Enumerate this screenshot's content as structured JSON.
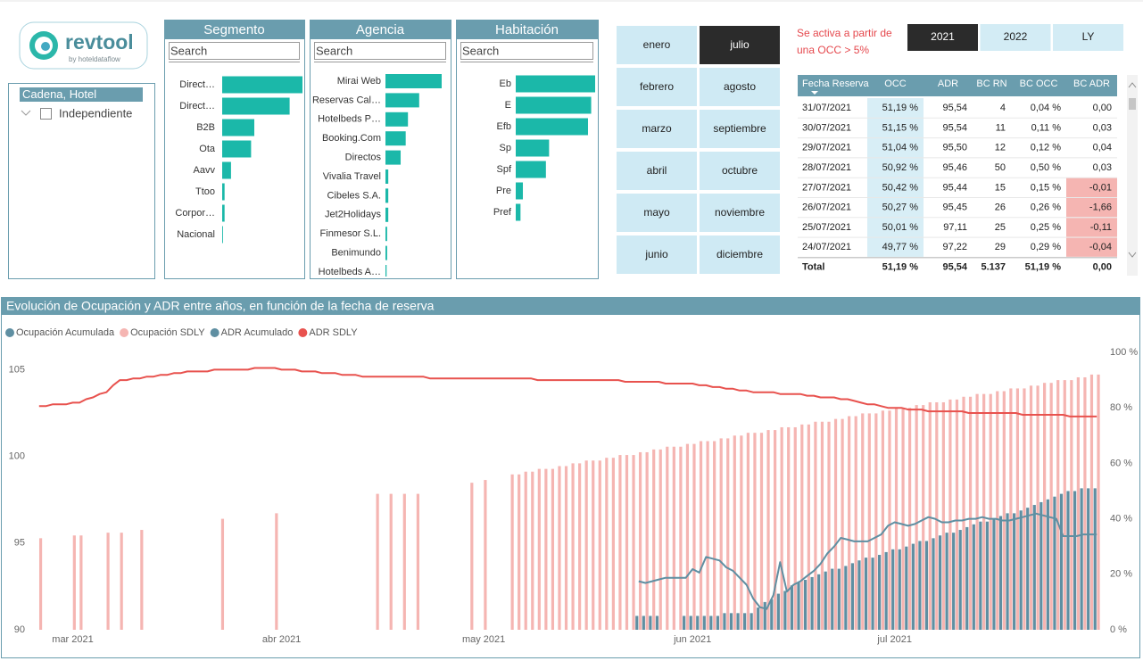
{
  "logo": {
    "name": "revtool",
    "tagline": "by hoteldataflow"
  },
  "slicer": {
    "title": "Cadena, Hotel",
    "items": [
      "Independiente"
    ]
  },
  "filters": [
    {
      "title": "Segmento",
      "search": "Search",
      "color": "#1bb8a9",
      "categories": [
        "Direct…",
        "Direct…",
        "B2B",
        "Ota",
        "Aavv",
        "Ttoo",
        "Corpor…",
        "Nacional"
      ],
      "values": [
        100,
        84,
        40,
        36,
        11,
        3,
        3,
        1
      ]
    },
    {
      "title": "Agencia",
      "search": "Search",
      "color": "#1bb8a9",
      "categories": [
        "Mirai Web",
        "Reservas Cal…",
        "Hotelbeds P…",
        "Booking.Com",
        "Directos",
        "Vivalia Travel",
        "Cibeles S.A.",
        "Jet2Holidays",
        "Finmesor S.L.",
        "Benimundo",
        "Hotelbeds A…"
      ],
      "values": [
        100,
        60,
        40,
        36,
        27,
        5,
        5,
        5,
        3,
        3,
        2
      ]
    },
    {
      "title": "Habitación",
      "search": "Search",
      "color": "#1bb8a9",
      "categories": [
        "Eb",
        "E",
        "Efb",
        "Sp",
        "Spf",
        "Pre",
        "Pref"
      ],
      "values": [
        100,
        95,
        91,
        42,
        38,
        9,
        6
      ]
    }
  ],
  "months": {
    "options": [
      "enero",
      "febrero",
      "marzo",
      "abril",
      "mayo",
      "junio",
      "julio",
      "agosto",
      "septiembre",
      "octubre",
      "noviembre",
      "diciembre"
    ],
    "selected": "julio"
  },
  "note": [
    "Se activa a partir de",
    "una OCC > 5%"
  ],
  "years": {
    "options": [
      "2021",
      "2022",
      "LY"
    ],
    "selected": "2021"
  },
  "table": {
    "columns": [
      "Fecha Reserva",
      "OCC",
      "ADR",
      "BC RN",
      "BC OCC",
      "BC ADR"
    ],
    "rows": [
      [
        "31/07/2021",
        "51,19 %",
        "95,54",
        "4",
        "0,04 %",
        "0,00"
      ],
      [
        "30/07/2021",
        "51,15 %",
        "95,54",
        "11",
        "0,11 %",
        "0,03"
      ],
      [
        "29/07/2021",
        "51,04 %",
        "95,50",
        "12",
        "0,12 %",
        "0,04"
      ],
      [
        "28/07/2021",
        "50,92 %",
        "95,46",
        "50",
        "0,50 %",
        "0,03"
      ],
      [
        "27/07/2021",
        "50,42 %",
        "95,44",
        "15",
        "0,15 %",
        "-0,01"
      ],
      [
        "26/07/2021",
        "50,27 %",
        "95,45",
        "26",
        "0,26 %",
        "-1,66"
      ],
      [
        "25/07/2021",
        "50,01 %",
        "97,11",
        "25",
        "0,25 %",
        "-0,11"
      ],
      [
        "24/07/2021",
        "49,77 %",
        "97,22",
        "29",
        "0,29 %",
        "-0,04"
      ]
    ],
    "total": [
      "Total",
      "51,19 %",
      "95,54",
      "5.137",
      "51,19 %",
      "0,00"
    ]
  },
  "chart_data": {
    "type": "combo",
    "title": "Evolución de Ocupación y ADR entre años, en función de la fecha de reserva",
    "categories": [
      null,
      null,
      null,
      null,
      null,
      "mar 2021",
      null,
      null,
      null,
      null,
      null,
      null,
      null,
      null,
      null,
      null,
      null,
      null,
      null,
      null,
      null,
      null,
      null,
      null,
      null,
      null,
      null,
      null,
      null,
      null,
      null,
      null,
      null,
      null,
      null,
      null,
      "abr 2021",
      null,
      null,
      null,
      null,
      null,
      null,
      null,
      null,
      null,
      null,
      null,
      null,
      null,
      null,
      null,
      null,
      null,
      null,
      null,
      null,
      null,
      null,
      null,
      null,
      null,
      null,
      null,
      null,
      null,
      "may 2021",
      null,
      null,
      null,
      null,
      null,
      null,
      null,
      null,
      null,
      null,
      null,
      null,
      null,
      null,
      null,
      null,
      null,
      null,
      null,
      null,
      null,
      null,
      null,
      null,
      null,
      null,
      null,
      null,
      null,
      null,
      "jun 2021",
      null,
      null,
      null,
      null,
      null,
      null,
      null,
      null,
      null,
      null,
      null,
      null,
      null,
      null,
      null,
      null,
      null,
      null,
      null,
      null,
      null,
      null,
      null,
      null,
      null,
      null,
      null,
      null,
      null,
      "jul 2021",
      null,
      null,
      null,
      null,
      null,
      null,
      null,
      null,
      null,
      null,
      null,
      null,
      null,
      null,
      null,
      null,
      null,
      null,
      null,
      null,
      null,
      null,
      null,
      null,
      null,
      null,
      null,
      null,
      null,
      null
    ],
    "ylim": [
      90,
      106
    ],
    "yticks": [
      90,
      95,
      100,
      105
    ],
    "y2lim": [
      0,
      100
    ],
    "y2ticks": [
      {
        "value": 0,
        "label": "0 %"
      },
      {
        "value": 20,
        "label": "20 %"
      },
      {
        "value": 40,
        "label": "40 %"
      },
      {
        "value": 60,
        "label": "60 %"
      },
      {
        "value": 80,
        "label": "80 %"
      },
      {
        "value": 100,
        "label": "100 %"
      }
    ],
    "grid": false,
    "legend": "top-left",
    "series": [
      {
        "name": "Ocupación Acumulada",
        "type": "bar",
        "axis": "y2",
        "color": "#5f8fa2",
        "values": [
          null,
          null,
          null,
          null,
          null,
          null,
          null,
          null,
          null,
          null,
          null,
          null,
          null,
          null,
          null,
          null,
          null,
          null,
          null,
          null,
          null,
          null,
          null,
          null,
          null,
          null,
          null,
          null,
          null,
          null,
          null,
          null,
          null,
          null,
          null,
          null,
          null,
          null,
          null,
          null,
          null,
          null,
          null,
          null,
          null,
          null,
          null,
          null,
          null,
          null,
          null,
          null,
          null,
          null,
          null,
          null,
          null,
          null,
          null,
          null,
          null,
          null,
          null,
          null,
          null,
          null,
          null,
          null,
          null,
          null,
          null,
          null,
          null,
          null,
          null,
          null,
          null,
          null,
          null,
          null,
          null,
          null,
          null,
          null,
          null,
          null,
          null,
          null,
          null,
          5,
          5,
          5,
          5,
          null,
          null,
          null,
          5,
          5,
          5,
          5,
          5,
          5,
          6,
          6,
          6,
          6,
          6,
          8,
          10,
          11,
          13,
          14,
          16,
          17,
          18,
          19,
          20,
          21,
          22,
          22,
          23,
          24,
          25,
          26,
          26,
          27,
          28,
          29,
          29,
          30,
          31,
          32,
          32,
          33,
          34,
          35,
          35,
          36,
          37,
          38,
          39,
          39,
          40,
          41,
          42,
          42,
          43,
          44,
          45,
          46,
          47,
          48,
          49,
          50,
          50,
          51,
          51,
          51
        ]
      },
      {
        "name": "Ocupación SDLY",
        "type": "bar",
        "axis": "y2",
        "color": "#f5b5b2",
        "values": [
          33,
          null,
          null,
          null,
          null,
          34,
          34,
          null,
          null,
          null,
          35,
          null,
          35,
          null,
          null,
          36,
          null,
          null,
          null,
          null,
          null,
          null,
          null,
          null,
          null,
          null,
          null,
          40,
          null,
          null,
          null,
          null,
          null,
          null,
          null,
          42,
          null,
          null,
          null,
          null,
          null,
          null,
          null,
          null,
          null,
          null,
          null,
          null,
          null,
          null,
          49,
          null,
          49,
          null,
          49,
          null,
          49,
          null,
          null,
          null,
          null,
          null,
          null,
          null,
          53,
          null,
          54,
          null,
          null,
          null,
          56,
          56,
          57,
          57,
          58,
          58,
          58,
          59,
          59,
          60,
          60,
          61,
          61,
          61,
          62,
          62,
          63,
          63,
          63,
          64,
          64,
          65,
          65,
          66,
          66,
          66,
          67,
          67,
          68,
          68,
          68,
          69,
          69,
          70,
          70,
          71,
          71,
          71,
          72,
          72,
          73,
          73,
          73,
          74,
          74,
          75,
          75,
          75,
          76,
          76,
          77,
          77,
          78,
          78,
          78,
          79,
          79,
          80,
          80,
          80,
          81,
          81,
          82,
          82,
          82,
          83,
          83,
          84,
          84,
          85,
          85,
          85,
          86,
          86,
          87,
          87,
          87,
          88,
          88,
          89,
          89,
          90,
          90,
          90,
          91,
          91,
          92,
          92
        ]
      },
      {
        "name": "ADR Acumulado",
        "type": "line",
        "color": "#5f8fa2",
        "values": [
          null,
          null,
          null,
          null,
          null,
          null,
          null,
          null,
          null,
          null,
          null,
          null,
          null,
          null,
          null,
          null,
          null,
          null,
          null,
          null,
          null,
          null,
          null,
          null,
          null,
          null,
          null,
          null,
          null,
          null,
          null,
          null,
          null,
          null,
          null,
          null,
          null,
          null,
          null,
          null,
          null,
          null,
          null,
          null,
          null,
          null,
          null,
          null,
          null,
          null,
          null,
          null,
          null,
          null,
          null,
          null,
          null,
          null,
          null,
          null,
          null,
          null,
          null,
          null,
          null,
          null,
          null,
          null,
          null,
          null,
          null,
          null,
          null,
          null,
          null,
          null,
          null,
          null,
          null,
          null,
          null,
          null,
          null,
          null,
          null,
          null,
          null,
          null,
          null,
          92.8,
          92.7,
          92.8,
          92.9,
          93.0,
          93.0,
          93.0,
          93.0,
          93.5,
          93.3,
          94.2,
          94.1,
          94.0,
          93.6,
          93.4,
          93.0,
          92.6,
          91.8,
          91.3,
          91.2,
          92.0,
          93.9,
          92.2,
          92.6,
          92.8,
          93.1,
          93.4,
          93.8,
          94.4,
          94.8,
          95.3,
          95.2,
          95.1,
          95.1,
          95.1,
          95.3,
          95.5,
          96.0,
          96.2,
          96.1,
          96.0,
          96.1,
          96.3,
          96.5,
          96.4,
          96.2,
          96.2,
          96.3,
          96.3,
          96.4,
          96.4,
          96.5,
          96.4,
          96.4,
          96.3,
          96.3,
          96.4,
          96.5,
          96.6,
          96.7,
          96.6,
          96.5,
          96.4,
          95.4,
          95.4,
          95.4,
          95.5,
          95.5,
          95.5
        ]
      },
      {
        "name": "ADR SDLY",
        "type": "line",
        "color": "#e8524e",
        "values": [
          102.9,
          102.9,
          103.0,
          103.0,
          103.0,
          103.1,
          103.1,
          103.3,
          103.4,
          103.6,
          103.7,
          104.1,
          104.4,
          104.4,
          104.5,
          104.5,
          104.6,
          104.6,
          104.7,
          104.7,
          104.8,
          104.8,
          104.9,
          104.9,
          104.9,
          104.9,
          105.0,
          105.0,
          105.0,
          105.0,
          105.0,
          105.0,
          105.1,
          105.1,
          105.1,
          105.1,
          105.0,
          105.0,
          105.0,
          104.9,
          104.9,
          104.9,
          104.8,
          104.8,
          104.8,
          104.7,
          104.7,
          104.7,
          104.6,
          104.6,
          104.6,
          104.6,
          104.6,
          104.6,
          104.6,
          104.6,
          104.6,
          104.6,
          104.5,
          104.5,
          104.5,
          104.5,
          104.5,
          104.5,
          104.5,
          104.5,
          104.5,
          104.5,
          104.5,
          104.5,
          104.5,
          104.5,
          104.5,
          104.5,
          104.4,
          104.4,
          104.4,
          104.4,
          104.4,
          104.4,
          104.4,
          104.4,
          104.4,
          104.4,
          104.4,
          104.4,
          104.4,
          104.3,
          104.3,
          104.3,
          104.3,
          104.3,
          104.3,
          104.2,
          104.2,
          104.2,
          104.2,
          104.2,
          104.1,
          104.1,
          104.0,
          104.0,
          103.9,
          103.9,
          103.8,
          103.8,
          103.7,
          103.7,
          103.7,
          103.7,
          103.6,
          103.6,
          103.6,
          103.6,
          103.5,
          103.5,
          103.4,
          103.4,
          103.4,
          103.3,
          103.3,
          103.2,
          103.1,
          103.0,
          103.0,
          102.9,
          102.8,
          102.8,
          102.8,
          102.7,
          102.7,
          102.7,
          102.6,
          102.6,
          102.6,
          102.6,
          102.6,
          102.6,
          102.5,
          102.5,
          102.5,
          102.5,
          102.5,
          102.5,
          102.5,
          102.5,
          102.4,
          102.4,
          102.4,
          102.4,
          102.4,
          102.4,
          102.4,
          102.3,
          102.3,
          102.3,
          102.3,
          102.3
        ]
      }
    ]
  }
}
